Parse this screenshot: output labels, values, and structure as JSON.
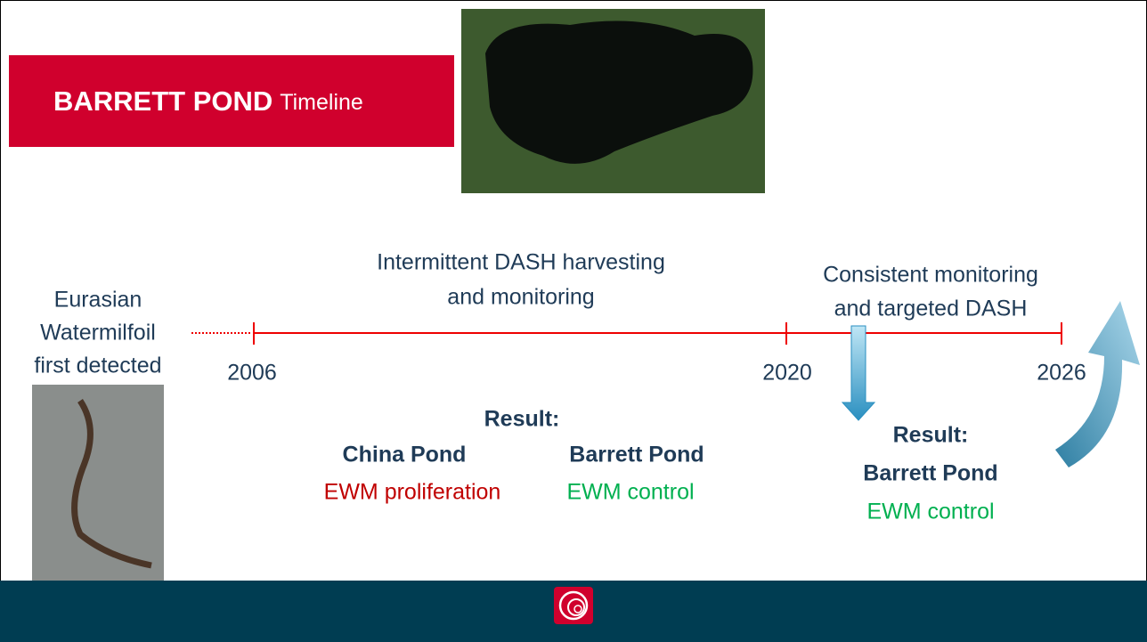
{
  "header": {
    "title": "BARRETT POND",
    "subtitle": "Timeline"
  },
  "detection": {
    "lines": [
      "Eurasian",
      "Watermilfoil",
      "first detected"
    ]
  },
  "timeline": {
    "years": [
      "2006",
      "2020",
      "2026"
    ]
  },
  "phases": [
    {
      "lines": [
        "Intermittent DASH harvesting",
        "and monitoring"
      ]
    },
    {
      "lines": [
        "Consistent monitoring",
        "and targeted DASH"
      ]
    }
  ],
  "results": [
    {
      "heading": "Result:",
      "ponds": [
        {
          "name": "China Pond",
          "outcome": "EWM proliferation"
        },
        {
          "name": "Barrett Pond",
          "outcome": "EWM control"
        }
      ]
    },
    {
      "heading": "Result:",
      "ponds": [
        {
          "name": "Barrett Pond",
          "outcome": "EWM control"
        }
      ]
    }
  ]
}
